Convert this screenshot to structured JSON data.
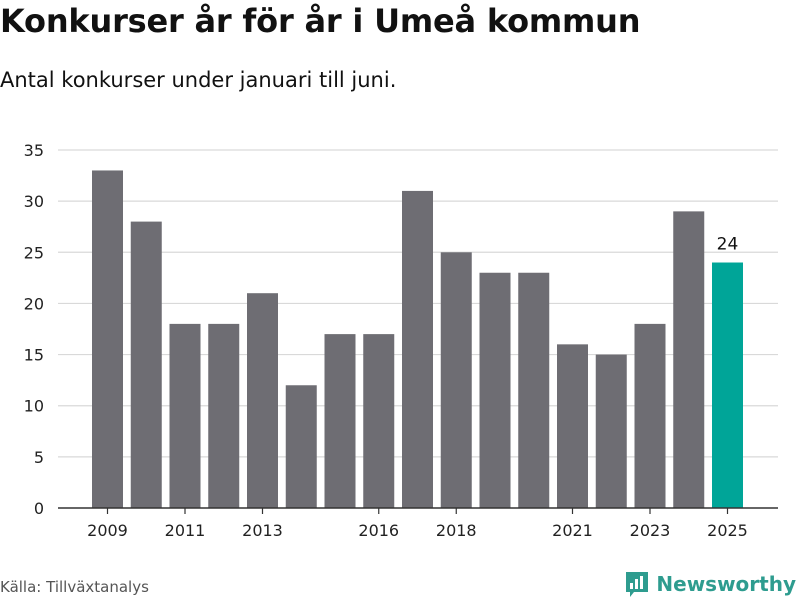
{
  "title": "Konkurser år för år i Umeå kommun",
  "subtitle": "Antal konkurser under januari till juni.",
  "source": "Källa: Tillväxtanalys",
  "brand": "Newsworthy",
  "colors": {
    "bar": "#6e6d73",
    "highlight": "#00a598",
    "grid": "#d9d9d9",
    "brand": "#2e9c8f"
  },
  "chart_data": {
    "type": "bar",
    "categories": [
      "2009",
      "2010",
      "2011",
      "2012",
      "2013",
      "2014",
      "2015",
      "2016",
      "2017",
      "2018",
      "2019",
      "2020",
      "2021",
      "2022",
      "2023",
      "2024",
      "2025"
    ],
    "values": [
      33,
      28,
      18,
      18,
      21,
      12,
      17,
      17,
      31,
      25,
      23,
      23,
      16,
      15,
      18,
      29,
      24
    ],
    "highlight": "2025",
    "data_labels": [
      {
        "category": "2025",
        "text": "24"
      }
    ],
    "xticks": [
      "2009",
      "2011",
      "2013",
      "2016",
      "2018",
      "2021",
      "2023",
      "2025"
    ],
    "yticks": [
      0,
      5,
      10,
      15,
      20,
      25,
      30,
      35
    ],
    "ylim": [
      0,
      35
    ],
    "grid": true
  }
}
